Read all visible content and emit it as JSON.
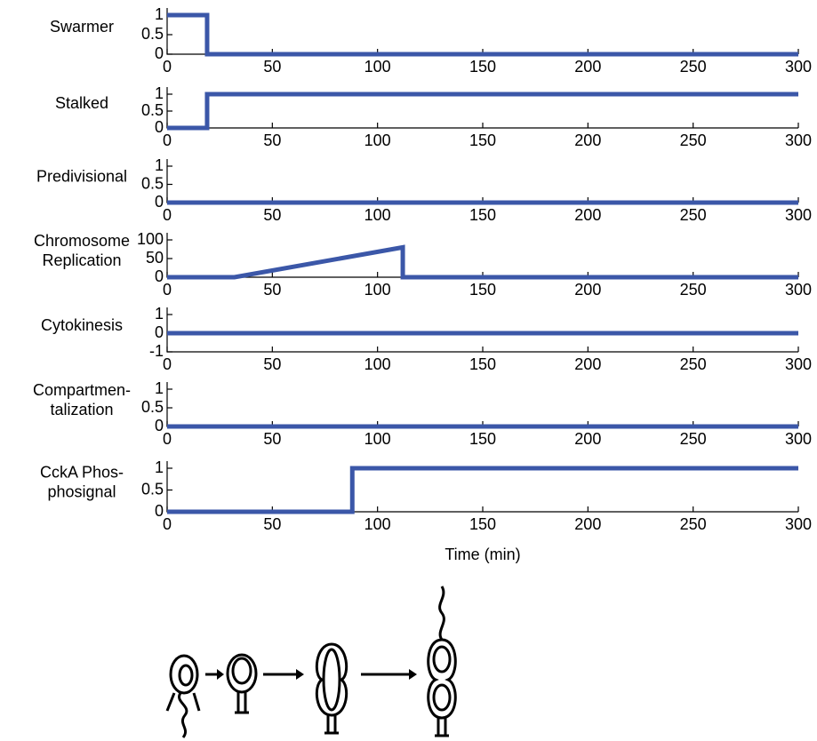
{
  "chart_data": [
    {
      "type": "line",
      "ylabel": [
        "Swarmer"
      ],
      "x": [
        0,
        19,
        19,
        300
      ],
      "values": [
        1,
        1,
        0,
        0
      ],
      "color": "#3b57a8",
      "xlim": [
        0,
        300
      ],
      "xticks": [
        0,
        50,
        100,
        150,
        200,
        250,
        300
      ],
      "ylim": [
        0,
        1
      ],
      "yticks": [
        0,
        0.5,
        1
      ]
    },
    {
      "type": "line",
      "ylabel": [
        "Stalked"
      ],
      "x": [
        0,
        19,
        19,
        300
      ],
      "values": [
        0,
        0,
        1,
        1
      ],
      "color": "#3b57a8",
      "xlim": [
        0,
        300
      ],
      "xticks": [
        0,
        50,
        100,
        150,
        200,
        250,
        300
      ],
      "ylim": [
        0,
        1
      ],
      "yticks": [
        0,
        0.5,
        1
      ]
    },
    {
      "type": "line",
      "ylabel": [
        "Predivisional"
      ],
      "x": [
        0,
        300
      ],
      "values": [
        0,
        0
      ],
      "color": "#3b57a8",
      "xlim": [
        0,
        300
      ],
      "xticks": [
        0,
        50,
        100,
        150,
        200,
        250,
        300
      ],
      "ylim": [
        0,
        1
      ],
      "yticks": [
        0,
        0.5,
        1
      ]
    },
    {
      "type": "line",
      "ylabel": [
        "Chromosome",
        "Replication"
      ],
      "x": [
        0,
        32,
        112,
        112,
        300
      ],
      "values": [
        0,
        0,
        80,
        0,
        0
      ],
      "color": "#3b57a8",
      "xlim": [
        0,
        300
      ],
      "xticks": [
        0,
        50,
        100,
        150,
        200,
        250,
        300
      ],
      "ylim": [
        0,
        100
      ],
      "yticks": [
        0,
        50,
        100
      ]
    },
    {
      "type": "line",
      "ylabel": [
        "Cytokinesis"
      ],
      "x": [
        0,
        300
      ],
      "values": [
        0,
        0
      ],
      "color": "#3b57a8",
      "xlim": [
        0,
        300
      ],
      "xticks": [
        0,
        50,
        100,
        150,
        200,
        250,
        300
      ],
      "ylim": [
        -1,
        1
      ],
      "yticks": [
        -1,
        0,
        1
      ]
    },
    {
      "type": "line",
      "ylabel": [
        "Compartmen-",
        "talization"
      ],
      "x": [
        0,
        300
      ],
      "values": [
        0,
        0
      ],
      "color": "#3b57a8",
      "xlim": [
        0,
        300
      ],
      "xticks": [
        0,
        50,
        100,
        150,
        200,
        250,
        300
      ],
      "ylim": [
        0,
        1
      ],
      "yticks": [
        0,
        0.5,
        1
      ]
    },
    {
      "type": "line",
      "ylabel": [
        "CckA Phos-",
        "phosignal"
      ],
      "x": [
        0,
        88,
        88,
        300
      ],
      "values": [
        0,
        0,
        1,
        1
      ],
      "color": "#3b57a8",
      "xlim": [
        0,
        300
      ],
      "xticks": [
        0,
        50,
        100,
        150,
        200,
        250,
        300
      ],
      "ylim": [
        0,
        1
      ],
      "yticks": [
        0,
        0.5,
        1
      ],
      "xlabel": "Time (min)"
    }
  ]
}
